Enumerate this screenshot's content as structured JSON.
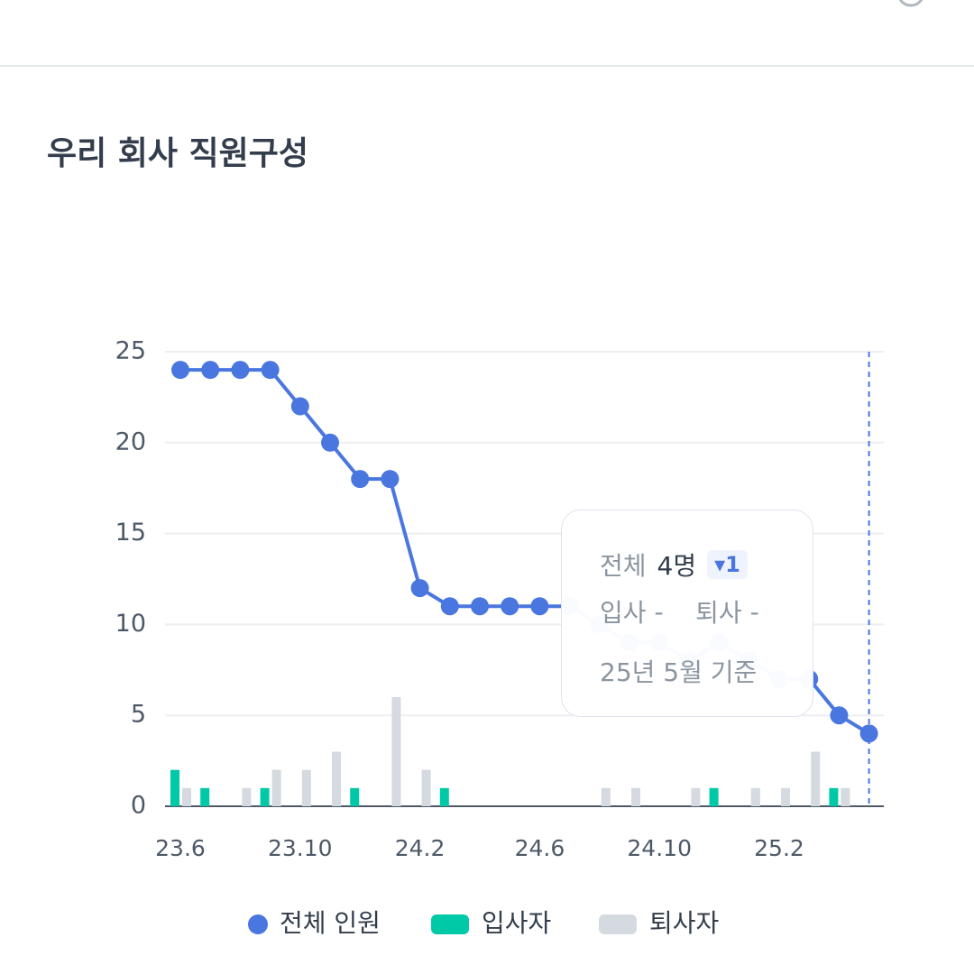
{
  "title": "우리 회사 직원구성",
  "chart_data": {
    "type": "line",
    "categories": [
      "23.6",
      null,
      null,
      null,
      "23.10",
      null,
      null,
      null,
      "24.2",
      null,
      null,
      null,
      "24.6",
      null,
      null,
      null,
      "24.10",
      null,
      null,
      null,
      "25.2",
      null,
      null,
      null
    ],
    "series": [
      {
        "name": "전체 인원",
        "type": "line",
        "color": "#4a76e0",
        "values": [
          24,
          24,
          24,
          24,
          22,
          20,
          18,
          18,
          12,
          11,
          11,
          11,
          11,
          11,
          10,
          9,
          9,
          8,
          9,
          8,
          7,
          7,
          5,
          4
        ]
      },
      {
        "name": "입사자",
        "type": "bar",
        "color": "#00c9a7",
        "values": [
          2,
          1,
          0,
          1,
          0,
          0,
          1,
          0,
          0,
          1,
          0,
          0,
          0,
          0,
          0,
          0,
          0,
          0,
          1,
          0,
          0,
          0,
          1,
          0
        ]
      },
      {
        "name": "퇴사자",
        "type": "bar",
        "color": "#d5d9e0",
        "values": [
          1,
          0,
          1,
          2,
          2,
          3,
          0,
          6,
          2,
          0,
          0,
          0,
          0,
          0,
          1,
          1,
          0,
          1,
          0,
          1,
          1,
          3,
          1,
          0
        ]
      }
    ],
    "ylim": [
      0,
      25
    ],
    "yticks": [
      0,
      5,
      10,
      15,
      20,
      25
    ],
    "grid": true
  },
  "tooltip": {
    "total_label": "전체",
    "total": "4명",
    "change": "1",
    "join_label": "입사",
    "join": "-",
    "leave_label": "퇴사",
    "leave": "-",
    "basis": "25년 5월 기준"
  }
}
